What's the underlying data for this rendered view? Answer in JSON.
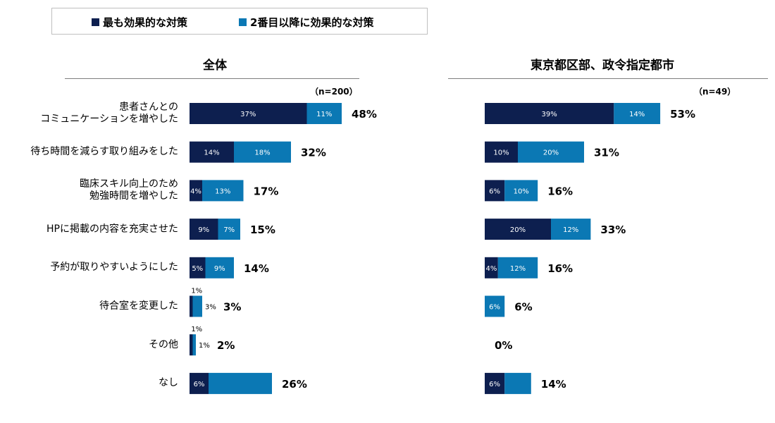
{
  "legend": {
    "primary_label": "最も効果的な対策",
    "secondary_label": "2番目以降に効果的な対策"
  },
  "colors": {
    "primary": "#0d1f4f",
    "secondary": "#0b78b4"
  },
  "chart_data": [
    {
      "type": "bar",
      "orientation": "horizontal",
      "stacked": true,
      "title": "全体",
      "n_label": "（n=200）",
      "categories": [
        "患者さんとの\nコミュニケーションを増やした",
        "待ち時間を減らす取り組みをした",
        "臨床スキル向上のため\n勉強時間を増やした",
        "HPに掲載の内容を充実させた",
        "予約が取りやすいようにした",
        "待合室を変更した",
        "その他",
        "なし"
      ],
      "series": [
        {
          "name": "最も効果的な対策",
          "values": [
            37,
            14,
            4,
            9,
            5,
            1,
            1,
            6
          ],
          "labels": [
            "37%",
            "14%",
            "4%",
            "9%",
            "5%",
            "1%",
            "1%",
            "6%"
          ]
        },
        {
          "name": "2番目以降に効果的な対策",
          "values": [
            11,
            18,
            13,
            7,
            9,
            3,
            1,
            20
          ],
          "labels": [
            "11%",
            "18%",
            "13%",
            "7%",
            "9%",
            "3%",
            "1%",
            ""
          ]
        }
      ],
      "totals": [
        "48%",
        "32%",
        "17%",
        "15%",
        "14%",
        "3%",
        "2%",
        "26%"
      ],
      "xlim": [
        0,
        100
      ]
    },
    {
      "type": "bar",
      "orientation": "horizontal",
      "stacked": true,
      "title": "東京都区部、政令指定都市",
      "n_label": "（n=49）",
      "categories": [
        "患者さんとの\nコミュニケーションを増やした",
        "待ち時間を減らす取り組みをした",
        "臨床スキル向上のため\n勉強時間を増やした",
        "HPに掲載の内容を充実させた",
        "予約が取りやすいようにした",
        "待合室を変更した",
        "その他",
        "なし"
      ],
      "series": [
        {
          "name": "最も効果的な対策",
          "values": [
            39,
            10,
            6,
            20,
            4,
            0,
            0,
            6
          ],
          "labels": [
            "39%",
            "10%",
            "6%",
            "20%",
            "4%",
            "",
            "",
            "6%"
          ]
        },
        {
          "name": "2番目以降に効果的な対策",
          "values": [
            14,
            20,
            10,
            12,
            12,
            6,
            0,
            8
          ],
          "labels": [
            "14%",
            "20%",
            "10%",
            "12%",
            "12%",
            "6%",
            "",
            ""
          ]
        }
      ],
      "totals": [
        "53%",
        "31%",
        "16%",
        "33%",
        "16%",
        "6%",
        "0%",
        "14%"
      ],
      "xlim": [
        0,
        100
      ]
    }
  ]
}
